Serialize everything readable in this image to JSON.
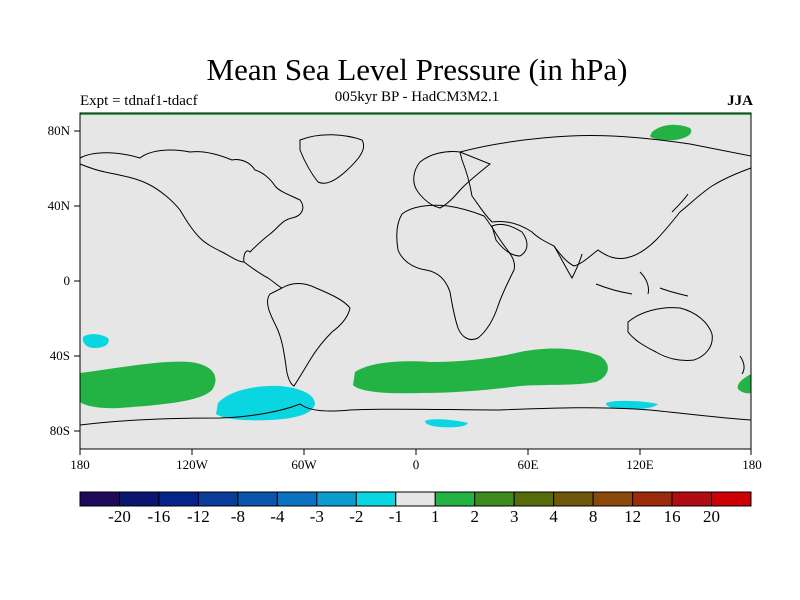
{
  "title": "Mean Sea Level Pressure (in hPa)",
  "subtitle": "005kyr BP - HadCM3M2.1",
  "experiment": "Expt = tdnaf1-tdacf",
  "season": "JJA",
  "lat_labels": [
    "80N",
    "40N",
    "0",
    "40S",
    "80S"
  ],
  "lon_labels": [
    "180",
    "120W",
    "60W",
    "0",
    "60E",
    "120E",
    "180"
  ],
  "colorbar": {
    "colors": [
      "#1f0b5a",
      "#0a1670",
      "#06238a",
      "#0a3c9a",
      "#0a55ad",
      "#0b72c1",
      "#0c9ccd",
      "#0ad6e2",
      "#e6e6e6",
      "#23b344",
      "#3e8c1d",
      "#566b0a",
      "#6e560a",
      "#8a480a",
      "#9a2a0a",
      "#b00c12",
      "#cc0005"
    ],
    "labels": [
      "-20",
      "-16",
      "-12",
      "-8",
      "-4",
      "-3",
      "-2",
      "-1",
      "1",
      "2",
      "3",
      "4",
      "8",
      "12",
      "16",
      "20"
    ]
  },
  "map": {
    "background": "#e6e6e6",
    "positive_color": "#23b344",
    "negative_color": "#0ad6e2"
  }
}
